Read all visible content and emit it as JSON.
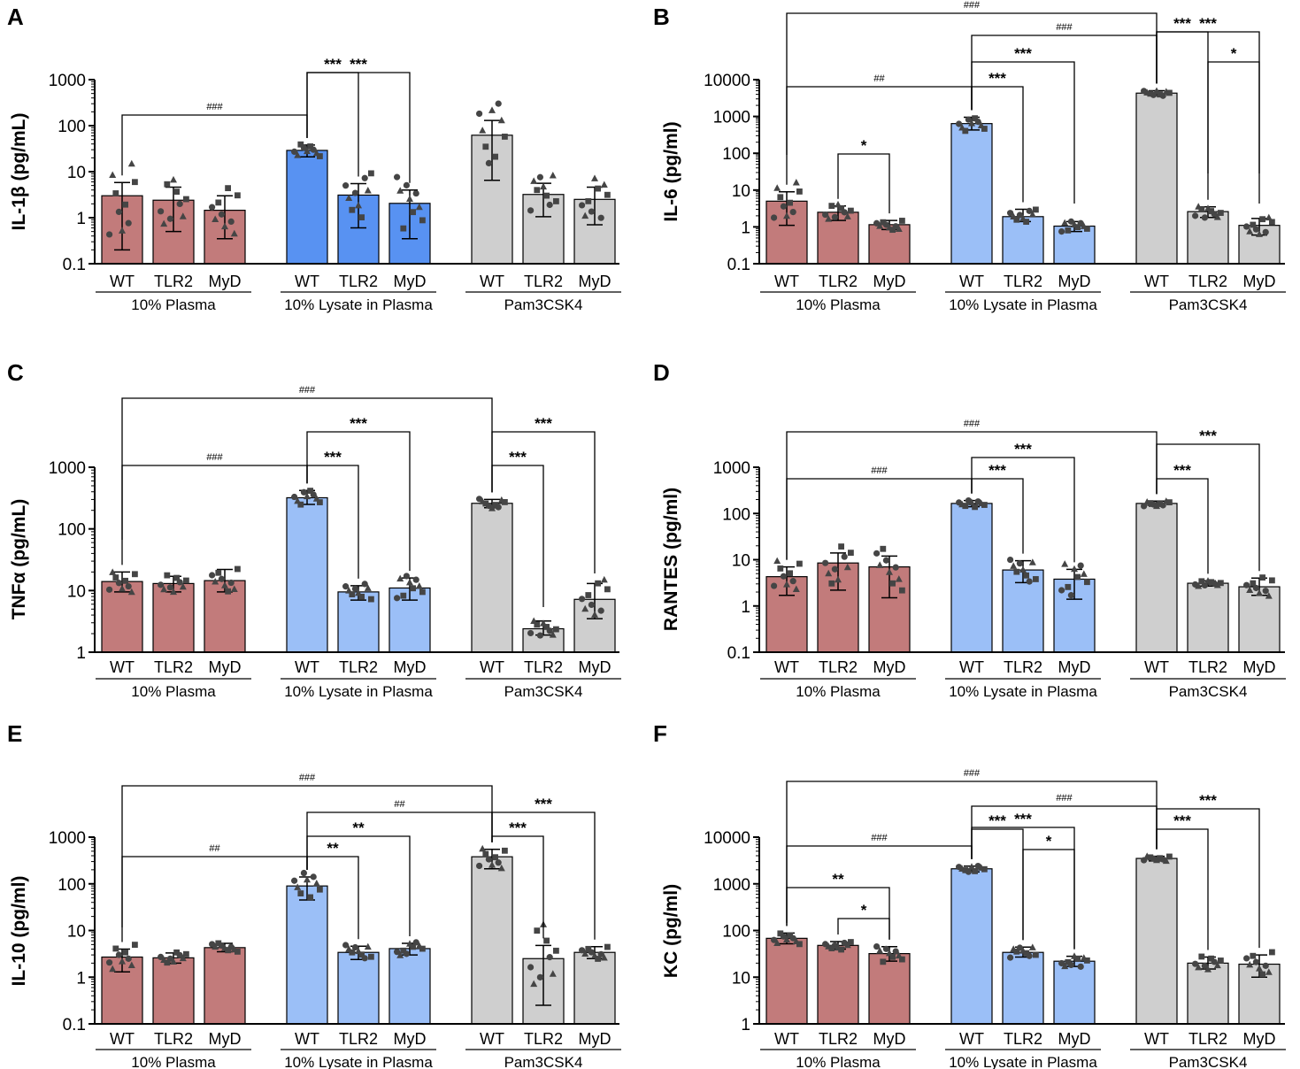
{
  "figure": {
    "panel_letters": [
      "A",
      "B",
      "C",
      "D",
      "E",
      "F"
    ]
  },
  "colors": {
    "plasma": "#c27b7b",
    "lysate": "#9bbff7",
    "lysate_A": "#5892f2",
    "pam": "#cfcfcf",
    "dots": "#454545"
  },
  "chart_data": [
    {
      "panel": "A",
      "type": "bar",
      "scale": "log",
      "ylabel": "IL-1β (pg/mL)",
      "ylim": [
        0.1,
        1000
      ],
      "yticks": [
        "0.1",
        "1",
        "10",
        "100",
        "1000"
      ],
      "categories": [
        "WT",
        "TLR2",
        "MyD",
        "WT",
        "TLR2",
        "MyD",
        "WT",
        "TLR2",
        "MyD"
      ],
      "groups": [
        "10% Plasma",
        "10% Lysate in Plasma",
        "Pam3CSK4"
      ],
      "values": [
        3.0,
        2.4,
        1.45,
        29,
        3.1,
        2.05,
        62,
        3.2,
        2.5
      ],
      "sd_low": [
        0.2,
        0.5,
        0.35,
        21,
        0.6,
        0.35,
        6.5,
        1.05,
        0.7
      ],
      "sd_high": [
        5.8,
        4.6,
        3.0,
        38,
        5.5,
        4.0,
        130,
        5.6,
        4.6
      ],
      "comparisons": [
        {
          "from": 0,
          "to": 3,
          "label": "###"
        },
        {
          "from": 3,
          "to": 4,
          "label": "***"
        },
        {
          "from": 3,
          "to": 5,
          "label": "***"
        }
      ]
    },
    {
      "panel": "B",
      "type": "bar",
      "scale": "log",
      "ylabel": "IL-6 (pg/ml)",
      "ylim": [
        0.1,
        10000
      ],
      "yticks": [
        "0.1",
        "1",
        "10",
        "100",
        "1000",
        "10000"
      ],
      "categories": [
        "WT",
        "TLR2",
        "MyD",
        "WT",
        "TLR2",
        "MyD",
        "WT",
        "TLR2",
        "MyD"
      ],
      "groups": [
        "10% Plasma",
        "10% Lysate in Plasma",
        "Pam3CSK4"
      ],
      "values": [
        5.0,
        2.5,
        1.15,
        640,
        1.9,
        1.05,
        4300,
        2.6,
        1.1
      ],
      "sd_low": [
        1.1,
        1.5,
        0.85,
        430,
        1.4,
        0.75,
        3700,
        1.8,
        0.6
      ],
      "sd_high": [
        9,
        3.7,
        1.5,
        950,
        3.0,
        1.4,
        5000,
        3.5,
        1.7
      ],
      "comparisons": [
        {
          "from": 0,
          "to": 6,
          "label": "###"
        },
        {
          "from": 3,
          "to": 6,
          "label": "###"
        },
        {
          "from": 6,
          "to": 8,
          "label": "***"
        },
        {
          "from": 3,
          "to": 5,
          "label": "***"
        },
        {
          "from": 6,
          "to": 7,
          "label": "***"
        },
        {
          "from": 7,
          "to": 8,
          "label": "*"
        },
        {
          "from": 0,
          "to": 3,
          "label": "##"
        },
        {
          "from": 3,
          "to": 4,
          "label": "***"
        },
        {
          "from": 1,
          "to": 2,
          "label": "*"
        }
      ]
    },
    {
      "panel": "C",
      "type": "bar",
      "scale": "log",
      "ylabel": "TNFα (pg/mL)",
      "ylim": [
        1,
        1000
      ],
      "yticks": [
        "1",
        "10",
        "100",
        "1000"
      ],
      "categories": [
        "WT",
        "TLR2",
        "MyD",
        "WT",
        "TLR2",
        "MyD",
        "WT",
        "TLR2",
        "MyD"
      ],
      "groups": [
        "10% Plasma",
        "10% Lysate in Plasma",
        "Pam3CSK4"
      ],
      "values": [
        14,
        13,
        14.5,
        320,
        9.5,
        11,
        260,
        2.4,
        7.2
      ],
      "sd_low": [
        9.5,
        9.5,
        9.5,
        250,
        7,
        7,
        220,
        1.9,
        3.5
      ],
      "sd_high": [
        20,
        17,
        22,
        420,
        12,
        16,
        300,
        3.2,
        13
      ],
      "comparisons": [
        {
          "from": 0,
          "to": 6,
          "label": "###"
        },
        {
          "from": 3,
          "to": 5,
          "label": "***"
        },
        {
          "from": 6,
          "to": 8,
          "label": "***"
        },
        {
          "from": 0,
          "to": 3,
          "label": "###"
        },
        {
          "from": 3,
          "to": 4,
          "label": "***"
        },
        {
          "from": 6,
          "to": 7,
          "label": "***"
        }
      ]
    },
    {
      "panel": "D",
      "type": "bar",
      "scale": "log",
      "ylabel": "RANTES (pg/ml)",
      "ylim": [
        0.1,
        1000
      ],
      "yticks": [
        "0.1",
        "1",
        "10",
        "100",
        "1000"
      ],
      "categories": [
        "WT",
        "TLR2",
        "MyD",
        "WT",
        "TLR2",
        "MyD",
        "WT",
        "TLR2",
        "MyD"
      ],
      "groups": [
        "10% Plasma",
        "10% Lysate in Plasma",
        "Pam3CSK4"
      ],
      "values": [
        4.3,
        8.5,
        7.0,
        165,
        6.0,
        3.8,
        165,
        3.1,
        2.6
      ],
      "sd_low": [
        1.7,
        2.2,
        1.5,
        140,
        3.2,
        1.4,
        145,
        2.7,
        1.7
      ],
      "sd_high": [
        7,
        14,
        12,
        190,
        9.5,
        6.2,
        185,
        3.5,
        4.0
      ],
      "comparisons": [
        {
          "from": 0,
          "to": 6,
          "label": "###"
        },
        {
          "from": 3,
          "to": 5,
          "label": "***"
        },
        {
          "from": 6,
          "to": 8,
          "label": "***"
        },
        {
          "from": 0,
          "to": 3,
          "label": "###"
        },
        {
          "from": 3,
          "to": 4,
          "label": "***"
        },
        {
          "from": 6,
          "to": 7,
          "label": "***"
        }
      ]
    },
    {
      "panel": "E",
      "type": "bar",
      "scale": "log",
      "ylabel": "IL-10 (pg/ml)",
      "ylim": [
        0.1,
        1000
      ],
      "yticks": [
        "0.1",
        "1",
        "10",
        "100",
        "1000"
      ],
      "categories": [
        "WT",
        "TLR2",
        "MyD",
        "WT",
        "TLR2",
        "MyD",
        "WT",
        "TLR2",
        "MyD"
      ],
      "groups": [
        "10% Plasma",
        "10% Lysate in Plasma",
        "Pam3CSK4"
      ],
      "values": [
        2.7,
        2.6,
        4.3,
        90,
        3.4,
        4.1,
        380,
        2.5,
        3.4
      ],
      "sd_low": [
        1.3,
        2.0,
        3.5,
        45,
        2.4,
        3.0,
        210,
        0.25,
        2.5
      ],
      "sd_high": [
        4,
        3.3,
        5.3,
        140,
        4.6,
        5.3,
        550,
        4.8,
        4.5
      ],
      "comparisons": [
        {
          "from": 0,
          "to": 6,
          "label": "###"
        },
        {
          "from": 3,
          "to": 6,
          "label": "##"
        },
        {
          "from": 6,
          "to": 8,
          "label": "***"
        },
        {
          "from": 3,
          "to": 5,
          "label": "**"
        },
        {
          "from": 6,
          "to": 7,
          "label": "***"
        },
        {
          "from": 0,
          "to": 3,
          "label": "##"
        },
        {
          "from": 3,
          "to": 4,
          "label": "**"
        }
      ]
    },
    {
      "panel": "F",
      "type": "bar",
      "scale": "log",
      "ylabel": "KC (pg/ml)",
      "ylim": [
        1,
        10000
      ],
      "yticks": [
        "1",
        "10",
        "100",
        "1000",
        "10000"
      ],
      "categories": [
        "WT",
        "TLR2",
        "MyD",
        "WT",
        "TLR2",
        "MyD",
        "WT",
        "TLR2",
        "MyD"
      ],
      "groups": [
        "10% Plasma",
        "10% Lysate in Plasma",
        "Pam3CSK4"
      ],
      "values": [
        68,
        48,
        32,
        2100,
        34,
        22,
        3500,
        20,
        19
      ],
      "sd_low": [
        52,
        40,
        22,
        1800,
        27,
        17,
        3100,
        15,
        10
      ],
      "sd_high": [
        88,
        58,
        45,
        2400,
        44,
        28,
        3900,
        27,
        30
      ],
      "comparisons": [
        {
          "from": 0,
          "to": 6,
          "label": "###"
        },
        {
          "from": 3,
          "to": 6,
          "label": "###"
        },
        {
          "from": 6,
          "to": 8,
          "label": "***"
        },
        {
          "from": 0,
          "to": 3,
          "label": "###"
        },
        {
          "from": 3,
          "to": 5,
          "label": "***"
        },
        {
          "from": 6,
          "to": 7,
          "label": "***"
        },
        {
          "from": 3,
          "to": 4,
          "label": "***"
        },
        {
          "from": 4,
          "to": 5,
          "label": "*"
        },
        {
          "from": 0,
          "to": 2,
          "label": "**"
        },
        {
          "from": 1,
          "to": 2,
          "label": "*"
        }
      ]
    }
  ]
}
